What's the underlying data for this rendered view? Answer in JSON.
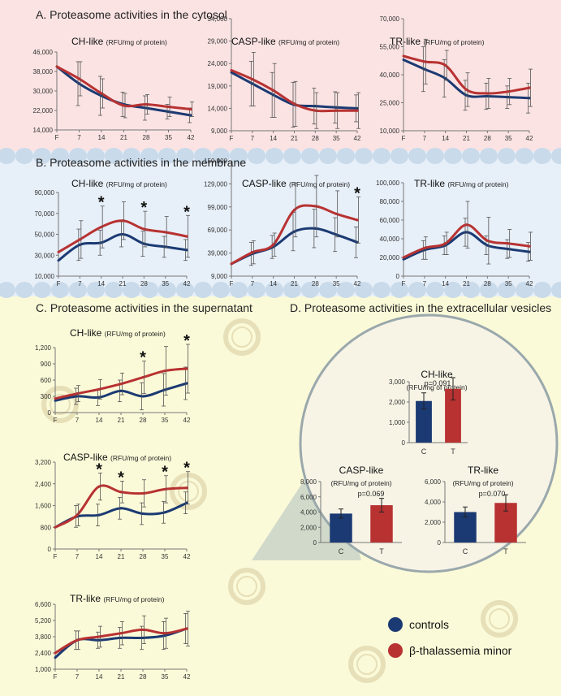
{
  "colors": {
    "controls": "#1b3a73",
    "thal": "#b83232",
    "cytosol_bg": "#fbe3e3",
    "membrane_bg": "#e7eff8",
    "lower_bg": "#fbfad8",
    "lipid": "#c9daea",
    "circle_bg": "#f7f4e6",
    "circle_border": "#9aa8ac",
    "cone": "#c9d4c8",
    "err": "#555555"
  },
  "sections": {
    "A": "A. Proteasome activities in the cytosol",
    "B": "B. Proteasome activities in the membrane",
    "C": "C. Proteasome activities in the supernatant",
    "D": "D. Proteasome activities in the extracellular vesicles"
  },
  "legend": [
    {
      "label": "controls",
      "color": "#1b3a73"
    },
    {
      "label": "β-thalassemia minor",
      "color": "#b83232"
    }
  ],
  "chart_data": [
    {
      "id": "A1",
      "type": "line",
      "title": "CH-like",
      "unit": "(RFU/mg of protein)",
      "x": [
        "F",
        "7",
        "14",
        "21",
        "28",
        "35",
        "42"
      ],
      "ylim": [
        14000,
        46000
      ],
      "yticks": [
        "46,000",
        "38,000",
        "30,000",
        "22,000",
        "14,000"
      ],
      "series": [
        {
          "name": "controls",
          "values": [
            40000,
            33000,
            28000,
            24500,
            23000,
            21500,
            20000
          ],
          "errors": [
            0,
            9000,
            8000,
            5000,
            5000,
            3000,
            3000
          ]
        },
        {
          "name": "β-thalassemia minor",
          "values": [
            40000,
            35000,
            29000,
            24000,
            24500,
            23500,
            22500
          ],
          "errors": [
            0,
            7000,
            6000,
            5000,
            4000,
            4000,
            3000
          ]
        }
      ],
      "stars": []
    },
    {
      "id": "A2",
      "type": "line",
      "title": "CASP-like",
      "unit": "(RFU/mg of protein)",
      "x": [
        "F",
        "7",
        "14",
        "21",
        "28",
        "35",
        "42"
      ],
      "ylim": [
        9000,
        34000
      ],
      "yticks": [
        "34,000",
        "29,000",
        "24,000",
        "19,000",
        "14,000",
        "9,000"
      ],
      "series": [
        {
          "name": "controls",
          "values": [
            22000,
            19500,
            17000,
            14800,
            14500,
            14200,
            14000
          ],
          "errors": [
            0,
            5000,
            5000,
            5000,
            4000,
            3500,
            3000
          ]
        },
        {
          "name": "β-thalassemia minor",
          "values": [
            22500,
            20500,
            18000,
            15000,
            13500,
            13500,
            13500
          ],
          "errors": [
            0,
            6000,
            6000,
            5000,
            4000,
            4000,
            4000
          ]
        }
      ],
      "stars": []
    },
    {
      "id": "A3",
      "type": "line",
      "title": "TR-like",
      "unit": "(RFU/mg of protein)",
      "x": [
        "F",
        "7",
        "14",
        "21",
        "28",
        "35",
        "42"
      ],
      "ylim": [
        10000,
        70000
      ],
      "yticks": [
        "70,000",
        "55,000",
        "40,000",
        "25,000",
        "10,000"
      ],
      "series": [
        {
          "name": "controls",
          "values": [
            48000,
            43000,
            38000,
            29000,
            28500,
            28000,
            27500
          ],
          "errors": [
            0,
            12000,
            10000,
            8000,
            7000,
            6000,
            8000
          ]
        },
        {
          "name": "β-thalassemia minor",
          "values": [
            50000,
            47000,
            45000,
            32000,
            30000,
            31000,
            33000
          ],
          "errors": [
            0,
            12000,
            8000,
            9000,
            8000,
            7000,
            10000
          ]
        }
      ],
      "stars": []
    },
    {
      "id": "B1",
      "type": "line",
      "title": "CH-like",
      "unit": "(RFU/mg of protein)",
      "x": [
        "F",
        "7",
        "14",
        "21",
        "28",
        "35",
        "42"
      ],
      "ylim": [
        10000,
        90000
      ],
      "yticks": [
        "90,000",
        "70,000",
        "50,000",
        "30,000",
        "10,000"
      ],
      "series": [
        {
          "name": "controls",
          "values": [
            25000,
            40000,
            42000,
            50000,
            41000,
            38000,
            35000
          ],
          "errors": [
            0,
            15000,
            12000,
            12000,
            12000,
            10000,
            10000
          ]
        },
        {
          "name": "β-thalassemia minor",
          "values": [
            33000,
            45000,
            57000,
            63000,
            55000,
            52000,
            48000
          ],
          "errors": [
            0,
            18000,
            20000,
            18000,
            17000,
            15000,
            20000
          ]
        }
      ],
      "stars": [
        "14",
        "28",
        "42"
      ]
    },
    {
      "id": "B2",
      "type": "line",
      "title": "CASP-like",
      "unit": "(RFU/mg of protein)",
      "x": [
        "F",
        "7",
        "14",
        "21",
        "28",
        "35",
        "42"
      ],
      "ylim": [
        9000,
        159000
      ],
      "yticks": [
        "159,000",
        "129,000",
        "99,000",
        "69,000",
        "39,000",
        "9,000"
      ],
      "series": [
        {
          "name": "controls",
          "values": [
            25000,
            38000,
            47000,
            67000,
            71000,
            63000,
            53000
          ],
          "errors": [
            0,
            15000,
            15000,
            25000,
            25000,
            22000,
            20000
          ]
        },
        {
          "name": "β-thalassemia minor",
          "values": [
            25000,
            40000,
            50000,
            95000,
            100000,
            90000,
            82000
          ],
          "errors": [
            0,
            15000,
            15000,
            35000,
            40000,
            30000,
            30000
          ]
        }
      ],
      "stars": [
        "42"
      ]
    },
    {
      "id": "B3",
      "type": "line",
      "title": "TR-like",
      "unit": "(RFU/mg of protein)",
      "x": [
        "F",
        "7",
        "14",
        "21",
        "28",
        "35",
        "42"
      ],
      "ylim": [
        0,
        100000
      ],
      "yticks": [
        "100,000",
        "80,000",
        "60,000",
        "40,000",
        "20,000",
        "0"
      ],
      "series": [
        {
          "name": "controls",
          "values": [
            18000,
            28000,
            33000,
            47000,
            33000,
            29000,
            26000
          ],
          "errors": [
            0,
            10000,
            10000,
            15000,
            10000,
            10000,
            10000
          ]
        },
        {
          "name": "β-thalassemia minor",
          "values": [
            20000,
            30000,
            35000,
            55000,
            38000,
            35000,
            32000
          ],
          "errors": [
            0,
            12000,
            12000,
            25000,
            25000,
            15000,
            15000
          ]
        }
      ],
      "stars": []
    },
    {
      "id": "C1",
      "type": "line",
      "title": "CH-like",
      "unit": "(RFU/mg of protein)",
      "x": [
        "F",
        "7",
        "14",
        "21",
        "28",
        "35",
        "42"
      ],
      "ylim": [
        0,
        1200
      ],
      "yticks": [
        "1,200",
        "900",
        "600",
        "300",
        "0"
      ],
      "series": [
        {
          "name": "controls",
          "values": [
            220,
            300,
            280,
            400,
            300,
            420,
            540
          ],
          "errors": [
            0,
            150,
            150,
            200,
            250,
            300,
            300
          ]
        },
        {
          "name": "β-thalassemia minor",
          "values": [
            260,
            350,
            430,
            530,
            650,
            770,
            810
          ],
          "errors": [
            0,
            150,
            180,
            200,
            300,
            450,
            450
          ]
        }
      ],
      "stars": [
        "28",
        "42"
      ]
    },
    {
      "id": "C2",
      "type": "line",
      "title": "CASP-like",
      "unit": "(RFU/mg of protein)",
      "x": [
        "F",
        "7",
        "14",
        "21",
        "28",
        "35",
        "42"
      ],
      "ylim": [
        0,
        3200
      ],
      "yticks": [
        "3,200",
        "2,400",
        "1,600",
        "800",
        "0"
      ],
      "series": [
        {
          "name": "controls",
          "values": [
            800,
            1200,
            1250,
            1500,
            1300,
            1350,
            1700
          ],
          "errors": [
            0,
            400,
            400,
            400,
            400,
            400,
            400
          ]
        },
        {
          "name": "β-thalassemia minor",
          "values": [
            800,
            1250,
            2300,
            2100,
            2050,
            2200,
            2250
          ],
          "errors": [
            0,
            400,
            500,
            400,
            500,
            500,
            600
          ]
        }
      ],
      "stars": [
        "14",
        "21",
        "35",
        "42"
      ]
    },
    {
      "id": "C3",
      "type": "line",
      "title": "TR-like",
      "unit": "(RFU/mg of protein)",
      "x": [
        "F",
        "7",
        "14",
        "21",
        "28",
        "35",
        "42"
      ],
      "ylim": [
        1000,
        6600
      ],
      "yticks": [
        "6,600",
        "5,200",
        "3,800",
        "2,400",
        "1,000"
      ],
      "series": [
        {
          "name": "controls",
          "values": [
            2000,
            3500,
            3500,
            3700,
            3700,
            3900,
            4500
          ],
          "errors": [
            0,
            800,
            700,
            900,
            1000,
            1200,
            1300
          ]
        },
        {
          "name": "β-thalassemia minor",
          "values": [
            2400,
            3500,
            3800,
            4100,
            4400,
            4100,
            4500
          ],
          "errors": [
            0,
            800,
            900,
            1000,
            1200,
            1300,
            1500
          ]
        }
      ],
      "stars": []
    },
    {
      "id": "D1",
      "type": "bar",
      "title": "CH-like",
      "unit": "(RFU/mg of protein)",
      "categories": [
        "C",
        "T"
      ],
      "values": [
        2050,
        2650
      ],
      "errors": [
        400,
        550
      ],
      "ylim": [
        0,
        3000
      ],
      "yticks": [
        "3,000",
        "2,000",
        "1,000",
        "0"
      ],
      "pvalue": "p=0.091"
    },
    {
      "id": "D2",
      "type": "bar",
      "title": "CASP-like",
      "unit": "(RFU/mg of protein)",
      "categories": [
        "C",
        "T"
      ],
      "values": [
        3800,
        4900
      ],
      "errors": [
        600,
        900
      ],
      "ylim": [
        0,
        8000
      ],
      "yticks": [
        "8,000",
        "6,000",
        "4,000",
        "2,000",
        "0"
      ],
      "pvalue": "p=0.069"
    },
    {
      "id": "D3",
      "type": "bar",
      "title": "TR-like",
      "unit": "(RFU/mg of protein)",
      "categories": [
        "C",
        "T"
      ],
      "values": [
        3000,
        3900
      ],
      "errors": [
        500,
        800
      ],
      "ylim": [
        0,
        6000
      ],
      "yticks": [
        "6,000",
        "4,000",
        "2,000",
        "0"
      ],
      "pvalue": "p=0.070"
    }
  ]
}
